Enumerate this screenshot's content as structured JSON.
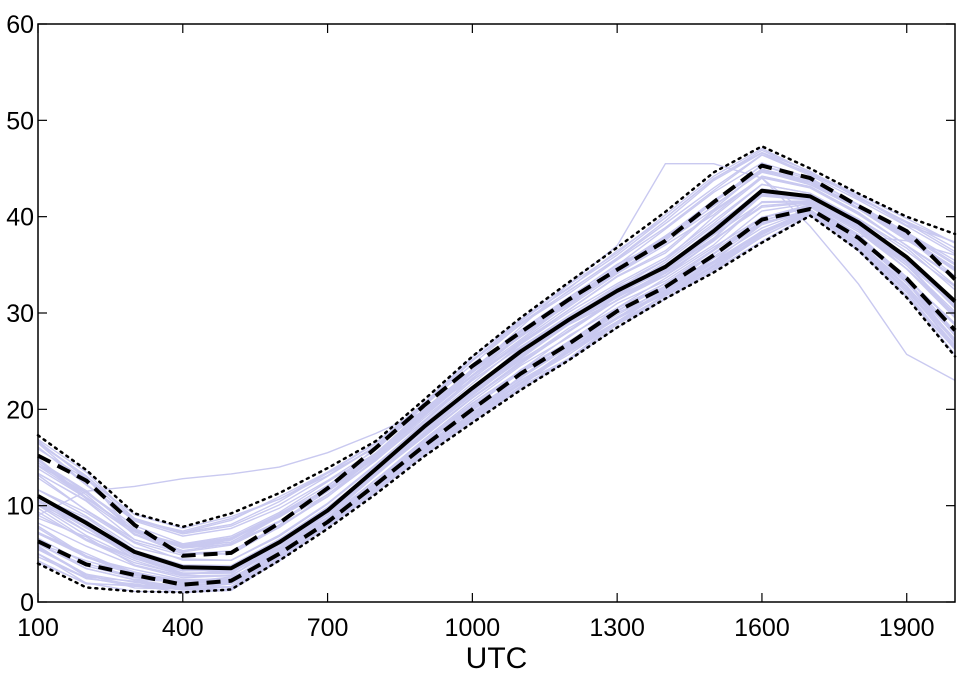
{
  "chart_data": {
    "type": "line",
    "title": "",
    "xlabel": "UTC",
    "ylabel": "",
    "xlim": [
      100,
      2000
    ],
    "ylim": [
      0,
      60
    ],
    "xticks": [
      100,
      400,
      700,
      1000,
      1300,
      1600,
      1900
    ],
    "yticks": [
      0,
      10,
      20,
      30,
      40,
      50,
      60
    ],
    "xtick_labels": [
      "100",
      "400",
      "700",
      "1000",
      "1300",
      "1600",
      "1900"
    ],
    "ytick_labels": [
      "0",
      "10",
      "20",
      "30",
      "40",
      "50",
      "60"
    ],
    "grid": false,
    "legend": "none",
    "x": [
      100,
      200,
      300,
      400,
      500,
      600,
      700,
      800,
      900,
      1000,
      1100,
      1200,
      1300,
      1400,
      1500,
      1600,
      1700,
      1800,
      1900,
      2000
    ],
    "series": [
      {
        "role": "median",
        "style": "solid",
        "color": "#000000",
        "values": [
          11.0,
          8.2,
          5.2,
          3.6,
          3.5,
          6.2,
          9.5,
          13.8,
          18.2,
          22.2,
          26.0,
          29.3,
          32.3,
          34.8,
          38.5,
          42.7,
          42.1,
          39.4,
          35.8,
          31.2
        ]
      },
      {
        "role": "upper-inner",
        "style": "dashed",
        "color": "#000000",
        "values": [
          15.2,
          12.6,
          8.0,
          4.8,
          5.1,
          8.2,
          11.8,
          16.0,
          20.4,
          24.5,
          28.0,
          31.4,
          34.5,
          37.5,
          41.5,
          45.3,
          44.0,
          41.1,
          38.5,
          33.5
        ]
      },
      {
        "role": "lower-inner",
        "style": "dashed",
        "color": "#000000",
        "values": [
          6.3,
          3.9,
          2.8,
          1.8,
          2.2,
          5.0,
          8.3,
          12.2,
          16.2,
          20.0,
          23.7,
          26.8,
          30.2,
          32.7,
          36.0,
          39.7,
          40.8,
          37.8,
          33.6,
          28.2
        ]
      },
      {
        "role": "upper-outer",
        "style": "dotted",
        "color": "#000000",
        "values": [
          17.3,
          13.7,
          9.2,
          7.8,
          9.2,
          11.3,
          13.9,
          16.7,
          21.0,
          25.5,
          29.5,
          33.2,
          36.8,
          40.5,
          44.6,
          47.3,
          45.0,
          42.4,
          40.0,
          38.2
        ]
      },
      {
        "role": "lower-outer",
        "style": "dotted",
        "color": "#000000",
        "values": [
          4.0,
          1.5,
          1.1,
          1.0,
          1.3,
          4.3,
          7.6,
          11.2,
          15.1,
          18.6,
          22.0,
          25.1,
          28.5,
          31.5,
          34.2,
          37.3,
          40.1,
          36.5,
          31.6,
          25.5
        ]
      }
    ],
    "ensemble": {
      "count": 60,
      "color": "#c9c9f0",
      "description_free": true,
      "outliers": [
        {
          "values": [
            9.0,
            11.5,
            12.0,
            12.8,
            13.3,
            14.0,
            15.5,
            17.5,
            19.8,
            24.0,
            28.5,
            33.0,
            37.0,
            45.5,
            45.5,
            44.0,
            40.0,
            38.0,
            37.5,
            36.0
          ]
        },
        {
          "values": [
            16.5,
            13.0,
            7.0,
            5.0,
            5.0,
            8.0,
            12.0,
            16.0,
            20.0,
            23.0,
            26.5,
            29.5,
            32.5,
            35.5,
            40.0,
            44.0,
            39.0,
            33.0,
            25.7,
            23.0
          ]
        }
      ]
    },
    "colors": {
      "ensemble": "#c9c9f0",
      "stats": "#000000",
      "axes": "#000000",
      "background": "#ffffff"
    }
  }
}
